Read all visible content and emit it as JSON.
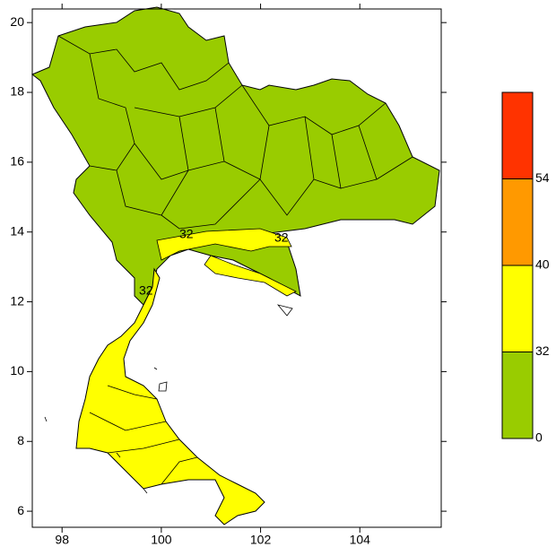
{
  "map": {
    "xlim": [
      97.4,
      105.64
    ],
    "ylim": [
      5.54,
      20.39
    ],
    "xticks": [
      98,
      100,
      102,
      104
    ],
    "yticks": [
      6,
      8,
      10,
      12,
      14,
      16,
      18,
      20
    ],
    "legend": {
      "breaks": [
        0,
        32,
        40,
        54
      ],
      "colors": [
        "#99cc00",
        "#ffff00",
        "#ff9900",
        "#ff3300"
      ]
    },
    "contour_labels": [
      "32",
      "32",
      "32"
    ]
  }
}
